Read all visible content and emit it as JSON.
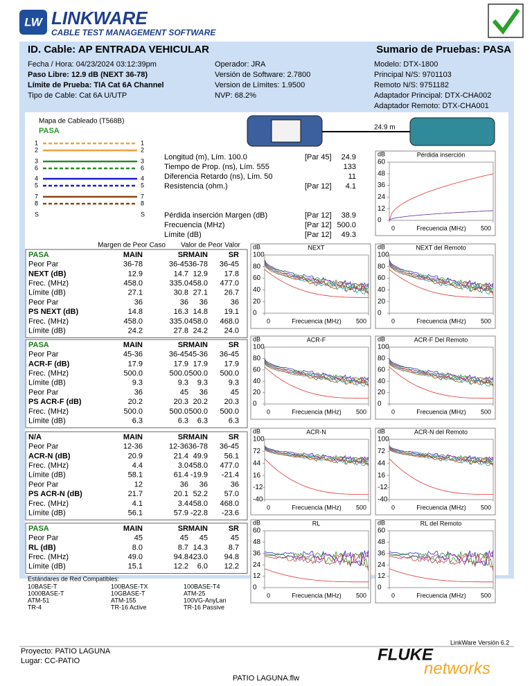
{
  "header": {
    "logo": "LW",
    "brand": "LINKWARE",
    "tagline": "CABLE TEST MANAGEMENT SOFTWARE"
  },
  "title_bar": {
    "left": "ID. Cable: AP ENTRADA VEHICULAR",
    "right": "Sumario de Pruebas: PASA"
  },
  "info": {
    "col1": [
      "Fecha / Hora: 04/23/2024 03:12:39pm",
      "Paso Libre: 12.9 dB (NEXT 36-78)",
      "Límite de Prueba: TIA Cat 6A Channel",
      "Tipo de Cable: Cat 6A U/UTP"
    ],
    "col2": [
      "Operador: JRA",
      "Versión de Software: 2.7800",
      "Version de Límites: 1.9500",
      "NVP: 68.2%"
    ],
    "col3": [
      "Modelo: DTX-1800",
      "Principal N/S: 9701103",
      "Remoto N/S: 9751182",
      "Adaptador Principal: DTX-CHA002",
      "Adaptador Remoto: DTX-CHA001"
    ]
  },
  "wiremap": {
    "title": "Mapa de Cableado (T568B)",
    "status": "PASA",
    "left_pins": [
      "1",
      "2",
      "3",
      "6",
      "4",
      "5",
      "7",
      "8",
      "S"
    ],
    "right_pins": [
      "1",
      "2",
      "3",
      "6",
      "4",
      "5",
      "7",
      "8",
      "S"
    ],
    "length": "24.9 m"
  },
  "measurements": [
    {
      "label": "Longitud (m), Lím. 100.0",
      "ref": "[Par 45]",
      "value": "24.9"
    },
    {
      "label": "Tiempo de Prop. (ns), Lím. 555",
      "value": "133"
    },
    {
      "label": "Diferencia Retardo (ns), Lím. 50",
      "value": "11"
    },
    {
      "label": "Resistencia (ohm.)",
      "ref": "[Par 12]",
      "value": "4.1"
    },
    {
      "label": "Pérdida inserción Margen (dB)",
      "ref": "[Par 12]",
      "value": "38.9"
    },
    {
      "label": "Frecuencia (MHz)",
      "ref": "[Par 12]",
      "value": "500.0"
    },
    {
      "label": "Límite (dB)",
      "ref": "[Par 12]",
      "value": "49.3"
    }
  ],
  "table_heads": [
    "Margen de Peor Caso",
    "Valor de Peor Valor"
  ],
  "tables": [
    {
      "header": [
        "PASA",
        "MAIN",
        "SR",
        "MAIN",
        "SR"
      ],
      "rows": [
        [
          "Peor Par",
          "36-78",
          "36-45",
          "36-78",
          "36-45"
        ],
        [
          "NEXT (dB)",
          "12.9",
          "14.7",
          "12.9",
          "17.8"
        ],
        [
          "Frec. (MHz)",
          "458.0",
          "335.0",
          "458.0",
          "477.0"
        ],
        [
          "Límite (dB)",
          "27.1",
          "30.8",
          "27.1",
          "26.7"
        ],
        [
          "Peor Par",
          "36",
          "36",
          "36",
          "36"
        ],
        [
          "PS NEXT (dB)",
          "14.8",
          "16.3",
          "14.8",
          "19.1"
        ],
        [
          "Frec. (MHz)",
          "458.0",
          "335.0",
          "458.0",
          "468.0"
        ],
        [
          "Límite (dB)",
          "24.2",
          "27.8",
          "24.2",
          "24.0"
        ]
      ]
    },
    {
      "header": [
        "PASA",
        "MAIN",
        "SR",
        "MAIN",
        "SR"
      ],
      "rows": [
        [
          "Peor Par",
          "45-36",
          "36-45",
          "45-36",
          "36-45"
        ],
        [
          "ACR-F (dB)",
          "17.9",
          "17.9",
          "17.9",
          "17.9"
        ],
        [
          "Frec. (MHz)",
          "500.0",
          "500.0",
          "500.0",
          "500.0"
        ],
        [
          "Límite (dB)",
          "9.3",
          "9.3",
          "9.3",
          "9.3"
        ],
        [
          "Peor Par",
          "36",
          "45",
          "36",
          "45"
        ],
        [
          "PS ACR-F (dB)",
          "20.2",
          "20.3",
          "20.2",
          "20.3"
        ],
        [
          "Frec. (MHz)",
          "500.0",
          "500.0",
          "500.0",
          "500.0"
        ],
        [
          "Límite (dB)",
          "6.3",
          "6.3",
          "6.3",
          "6.3"
        ]
      ]
    },
    {
      "header": [
        "N/A",
        "MAIN",
        "SR",
        "MAIN",
        "SR"
      ],
      "rows": [
        [
          "Peor Par",
          "12-36",
          "12-36",
          "36-78",
          "36-45"
        ],
        [
          "ACR-N (dB)",
          "20.9",
          "21.4",
          "49.9",
          "56.1"
        ],
        [
          "Frec. (MHz)",
          "4.4",
          "3.0",
          "458.0",
          "477.0"
        ],
        [
          "Límite (dB)",
          "58.1",
          "61.4",
          "-19.9",
          "-21.4"
        ],
        [
          "Peor Par",
          "12",
          "36",
          "36",
          "36"
        ],
        [
          "PS ACR-N (dB)",
          "21.7",
          "20.1",
          "52.2",
          "57.0"
        ],
        [
          "Frec. (MHz)",
          "4.1",
          "3.4",
          "458.0",
          "468.0"
        ],
        [
          "Límite (dB)",
          "56.1",
          "57.9",
          "-22.8",
          "-23.6"
        ]
      ]
    },
    {
      "header": [
        "PASA",
        "MAIN",
        "SR",
        "MAIN",
        "SR"
      ],
      "rows": [
        [
          "Peor Par",
          "45",
          "45",
          "45",
          "45"
        ],
        [
          "RL (dB)",
          "8.0",
          "8.7",
          "14.3",
          "8.7"
        ],
        [
          "Frec. (MHz)",
          "49.0",
          "94.8",
          "423.0",
          "94.8"
        ],
        [
          "Límite (dB)",
          "15.1",
          "12.2",
          "6.0",
          "12.2"
        ]
      ]
    }
  ],
  "plots": [
    {
      "title": "Pérdida inserción",
      "ylabel": "dB",
      "xlabel": "Frecuencia (MHz)",
      "ylim": [
        0,
        60
      ],
      "yticks": [
        0,
        12,
        24,
        36,
        48,
        60
      ],
      "xlim": [
        0,
        500
      ],
      "xticks": [
        0,
        500
      ]
    },
    {
      "title": "NEXT",
      "ylabel": "dB",
      "xlabel": "Frecuencia (MHz)",
      "ylim": [
        0,
        100
      ],
      "yticks": [
        0,
        20,
        40,
        60,
        80,
        100
      ],
      "xlim": [
        0,
        500
      ],
      "xticks": [
        0,
        500
      ]
    },
    {
      "title": "NEXT del Remoto",
      "ylabel": "dB",
      "xlabel": "Frecuencia (MHz)",
      "ylim": [
        0,
        100
      ],
      "yticks": [
        0,
        20,
        40,
        60,
        80,
        100
      ],
      "xlim": [
        0,
        500
      ],
      "xticks": [
        0,
        500
      ]
    },
    {
      "title": "ACR-F",
      "ylabel": "dB",
      "xlabel": "Frecuencia (MHz)",
      "ylim": [
        0,
        100
      ],
      "yticks": [
        0,
        20,
        40,
        60,
        80,
        100
      ],
      "xlim": [
        0,
        500
      ],
      "xticks": [
        0,
        500
      ]
    },
    {
      "title": "ACR-F Del Remoto",
      "ylabel": "dB",
      "xlabel": "Frecuencia (MHz)",
      "ylim": [
        0,
        100
      ],
      "yticks": [
        0,
        20,
        40,
        60,
        80,
        100
      ],
      "xlim": [
        0,
        500
      ],
      "xticks": [
        0,
        500
      ]
    },
    {
      "title": "ACR-N",
      "ylabel": "dB",
      "xlabel": "Frecuencia (MHz)",
      "ylim": [
        -40,
        100
      ],
      "yticks": [
        -40,
        -12,
        16,
        44,
        72,
        100
      ],
      "xlim": [
        0,
        500
      ],
      "xticks": [
        0,
        500
      ]
    },
    {
      "title": "ACR-N del Remoto",
      "ylabel": "dB",
      "xlabel": "Frecuencia (MHz)",
      "ylim": [
        -40,
        100
      ],
      "yticks": [
        -40,
        -12,
        16,
        44,
        72,
        100
      ],
      "xlim": [
        0,
        500
      ],
      "xticks": [
        0,
        500
      ]
    },
    {
      "title": "RL",
      "ylabel": "dB",
      "xlabel": "Frecuencia (MHz)",
      "ylim": [
        0,
        60
      ],
      "yticks": [
        0,
        12,
        24,
        36,
        48,
        60
      ],
      "xlim": [
        0,
        500
      ],
      "xticks": [
        0,
        500
      ]
    },
    {
      "title": "RL del Remoto",
      "ylabel": "dB",
      "xlabel": "Frecuencia (MHz)",
      "ylim": [
        0,
        60
      ],
      "yticks": [
        0,
        12,
        24,
        36,
        48,
        60
      ],
      "xlim": [
        0,
        500
      ],
      "xticks": [
        0,
        500
      ]
    }
  ],
  "standards": {
    "title": "Estándares de Red Compatibles:",
    "rows": [
      [
        "10BASE-T",
        "100BASE-TX",
        "100BASE-T4"
      ],
      [
        "1000BASE-T",
        "10GBASE-T",
        "ATM-25"
      ],
      [
        "ATM-51",
        "ATM-155",
        "100VG-AnyLan"
      ],
      [
        "TR-4",
        "TR-16 Active",
        "TR-16 Passive"
      ]
    ]
  },
  "footer": {
    "version": "LinkWare Versión  6.2",
    "project": "Proyecto: PATIO LAGUNA",
    "location": "Lugar: CC-PATIO",
    "file": "PATIO LAGUNA.flw",
    "brand": "FLUKE",
    "brand2": "networks"
  }
}
